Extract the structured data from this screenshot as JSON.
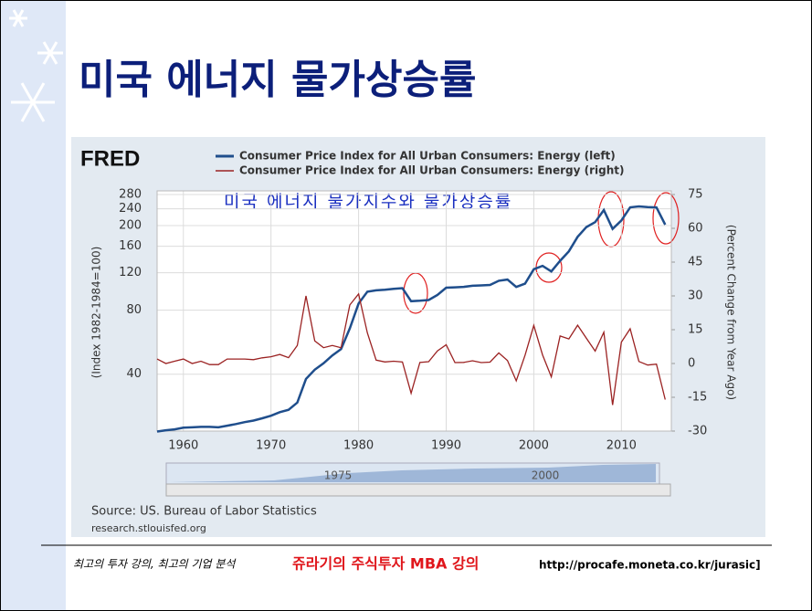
{
  "slide": {
    "title": "미국 에너지 물가상승률",
    "footer_left": "최고의 투자 강의, 최고의 기업 분석",
    "footer_brand": "쥬라기의 주식투자 MBA 강의",
    "footer_url": "http://procafe.moneta.co.kr/jurasic]"
  },
  "chart_data": {
    "type": "line",
    "logo": "FRED",
    "annotation": "미국 에너지 물가지수와 물가상승률",
    "ylabel": "(Index 1982-1984=100)",
    "y2label": "(Percent Change from Year Ago)",
    "source": "Source: US. Bureau of Labor Statistics",
    "site": "research.stlouisfed.org",
    "navigator_labels": [
      "1975",
      "2000"
    ],
    "log_y": true,
    "grid": true,
    "x": [
      1957,
      1958,
      1959,
      1960,
      1961,
      1962,
      1963,
      1964,
      1965,
      1966,
      1967,
      1968,
      1969,
      1970,
      1971,
      1972,
      1973,
      1974,
      1975,
      1976,
      1977,
      1978,
      1979,
      1980,
      1981,
      1982,
      1983,
      1984,
      1985,
      1986,
      1987,
      1988,
      1989,
      1990,
      1991,
      1992,
      1993,
      1994,
      1995,
      1996,
      1997,
      1998,
      1999,
      2000,
      2001,
      2002,
      2003,
      2004,
      2005,
      2006,
      2007,
      2008,
      2009,
      2010,
      2011,
      2012,
      2013,
      2014,
      2015
    ],
    "xlim": [
      1957,
      2015.7
    ],
    "xticks": [
      1960,
      1970,
      1980,
      1990,
      2000,
      2010
    ],
    "ylim": [
      21.6,
      280
    ],
    "yticks": [
      40,
      80,
      120,
      160,
      200,
      240,
      280
    ],
    "y2lim": [
      -30,
      75
    ],
    "y2ticks": [
      -30,
      -15,
      0,
      15,
      30,
      45,
      60,
      75
    ],
    "series": [
      {
        "name": "Consumer Price Index for All Urban Consumers: Energy (left)",
        "color": "#1f4e8c",
        "values": [
          21.5,
          21.8,
          22,
          22.4,
          22.5,
          22.6,
          22.6,
          22.5,
          22.9,
          23.3,
          23.8,
          24.2,
          24.8,
          25.5,
          26.5,
          27.2,
          29.4,
          38,
          42,
          45,
          49,
          52.5,
          65.7,
          86,
          97.7,
          99.2,
          99.9,
          100.9,
          101.6,
          88.2,
          88.6,
          89.3,
          94.3,
          102.1,
          102.5,
          103,
          104.2,
          104.6,
          105.2,
          110.1,
          111.5,
          102.9,
          106.6,
          124.6,
          129.3,
          121.7,
          136.5,
          151.4,
          177.1,
          196.9,
          207.7,
          236.7,
          193.1,
          211.4,
          243.9,
          246.1,
          244.3,
          243.6,
          202
        ]
      },
      {
        "name": "Consumer Price Index for All Urban Consumers: Energy (right)",
        "color": "#9b2222",
        "axis": "y2",
        "values": [
          2,
          0,
          1,
          2,
          0,
          1,
          -0.5,
          -0.5,
          2,
          2,
          2,
          1.7,
          2.5,
          3,
          4,
          2.6,
          8,
          30,
          10,
          7,
          8,
          7,
          26,
          30.9,
          13.6,
          1.5,
          0.7,
          1,
          0.7,
          -13.2,
          0.5,
          0.8,
          5.6,
          8.3,
          0.4,
          0.5,
          1.2,
          0.4,
          0.6,
          4.7,
          1.3,
          -7.7,
          3.6,
          16.9,
          3.8,
          -5.9,
          12.2,
          10.9,
          17,
          11.2,
          5.5,
          13.9,
          -18.4,
          9.5,
          15.4,
          0.9,
          -0.7,
          -0.3,
          -16
        ]
      }
    ]
  }
}
